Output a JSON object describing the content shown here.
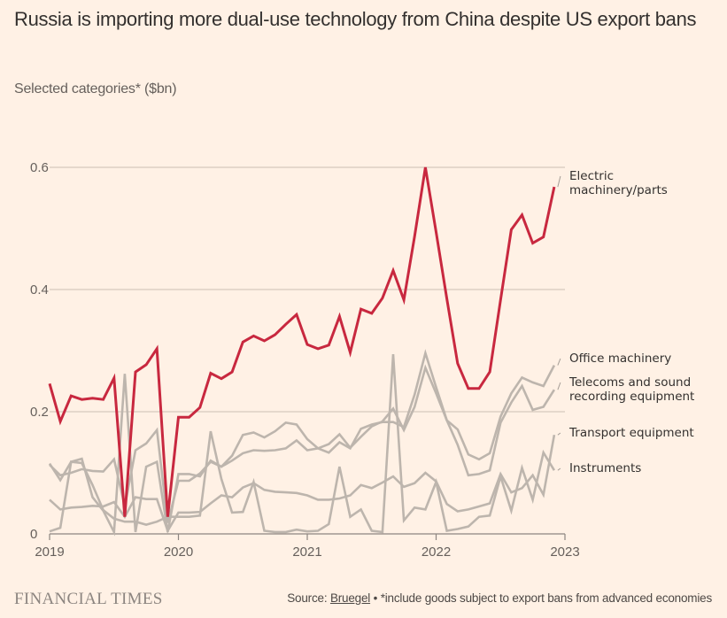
{
  "header": {
    "title": "Russia is importing more dual-use technology from China despite US export bans",
    "subtitle": "Selected categories* ($bn)"
  },
  "footer": {
    "brand": "FINANCIAL TIMES",
    "source_prefix": "Source: ",
    "source_link": "Bruegel",
    "source_note": " • *include goods subject to export bans from advanced economies"
  },
  "colors": {
    "background": "#fff1e5",
    "highlight": "#c8283f",
    "muted": "#bdb5ad",
    "grid": "#cbbfb4",
    "axis": "#8c8580"
  },
  "chart_data": {
    "type": "line",
    "title": "Russia is importing more dual-use technology from China despite US export bans",
    "subtitle": "Selected categories* ($bn)",
    "xlabel": "",
    "ylabel": "$bn",
    "x_start": "2019-01",
    "x_frequency": "monthly",
    "xlim": [
      2019,
      2023
    ],
    "ylim": [
      0,
      0.6
    ],
    "x_ticks": [
      "2019",
      "2020",
      "2021",
      "2022",
      "2023"
    ],
    "y_ticks": [
      0,
      0.2,
      0.4,
      0.6
    ],
    "y_tick_labels": [
      "0",
      "0.2",
      "0.4",
      "0.6"
    ],
    "grid": true,
    "legend": "direct labels at right end of lines",
    "series": [
      {
        "name": "Electric machinery/parts",
        "label_lines": [
          "Electric",
          "machinery/parts"
        ],
        "highlight": true,
        "values": [
          0.246,
          0.184,
          0.226,
          0.22,
          0.222,
          0.22,
          0.255,
          0.028,
          0.265,
          0.277,
          0.303,
          0.028,
          0.191,
          0.191,
          0.207,
          0.263,
          0.254,
          0.265,
          0.314,
          0.324,
          0.316,
          0.326,
          0.343,
          0.359,
          0.31,
          0.303,
          0.309,
          0.356,
          0.297,
          0.368,
          0.361,
          0.386,
          0.431,
          0.383,
          0.487,
          0.6,
          0.494,
          0.385,
          0.279,
          0.238,
          0.238,
          0.265,
          0.383,
          0.498,
          0.522,
          0.476,
          0.486,
          0.568
        ]
      },
      {
        "name": "Office machinery",
        "label_lines": [
          "Office machinery"
        ],
        "highlight": false,
        "values": [
          0.115,
          0.088,
          0.118,
          0.123,
          0.06,
          0.038,
          0.003,
          0.262,
          0.003,
          0.11,
          0.118,
          0.003,
          0.098,
          0.098,
          0.094,
          0.12,
          0.11,
          0.128,
          0.162,
          0.166,
          0.158,
          0.168,
          0.182,
          0.179,
          0.155,
          0.14,
          0.133,
          0.15,
          0.14,
          0.172,
          0.179,
          0.183,
          0.183,
          0.175,
          0.228,
          0.296,
          0.24,
          0.186,
          0.171,
          0.13,
          0.122,
          0.132,
          0.192,
          0.23,
          0.256,
          0.248,
          0.242,
          0.276
        ]
      },
      {
        "name": "Telecoms and sound recording equipment",
        "label_lines": [
          "Telecoms and sound",
          "recording equipment"
        ],
        "highlight": false,
        "values": [
          0.113,
          0.096,
          0.1,
          0.106,
          0.103,
          0.102,
          0.122,
          0.045,
          0.137,
          0.148,
          0.17,
          0.018,
          0.087,
          0.087,
          0.099,
          0.118,
          0.11,
          0.12,
          0.132,
          0.137,
          0.136,
          0.137,
          0.14,
          0.153,
          0.137,
          0.14,
          0.147,
          0.163,
          0.141,
          0.159,
          0.176,
          0.184,
          0.205,
          0.17,
          0.208,
          0.272,
          0.23,
          0.186,
          0.146,
          0.096,
          0.098,
          0.104,
          0.182,
          0.215,
          0.242,
          0.203,
          0.208,
          0.236
        ]
      },
      {
        "name": "Transport equipment",
        "label_lines": [
          "Transport equipment"
        ],
        "highlight": false,
        "values": [
          0.056,
          0.04,
          0.043,
          0.044,
          0.046,
          0.045,
          0.052,
          0.028,
          0.06,
          0.057,
          0.057,
          0.005,
          0.035,
          0.035,
          0.036,
          0.05,
          0.063,
          0.06,
          0.076,
          0.083,
          0.072,
          0.069,
          0.068,
          0.067,
          0.063,
          0.056,
          0.056,
          0.058,
          0.063,
          0.08,
          0.075,
          0.084,
          0.094,
          0.077,
          0.083,
          0.1,
          0.086,
          0.049,
          0.037,
          0.04,
          0.045,
          0.05,
          0.098,
          0.068,
          0.075,
          0.096,
          0.064,
          0.162
        ]
      },
      {
        "name": "Instruments",
        "label_lines": [
          "Instruments"
        ],
        "highlight": false,
        "values": [
          0.004,
          0.01,
          0.118,
          0.116,
          0.08,
          0.039,
          0.025,
          0.02,
          0.02,
          0.015,
          0.02,
          0.028,
          0.028,
          0.028,
          0.03,
          0.168,
          0.09,
          0.035,
          0.036,
          0.085,
          0.005,
          0.003,
          0.003,
          0.007,
          0.004,
          0.005,
          0.016,
          0.11,
          0.028,
          0.04,
          0.005,
          0.003,
          0.294,
          0.022,
          0.043,
          0.04,
          0.085,
          0.005,
          0.008,
          0.012,
          0.028,
          0.03,
          0.094,
          0.038,
          0.108,
          0.056,
          0.133,
          0.104
        ]
      }
    ]
  }
}
